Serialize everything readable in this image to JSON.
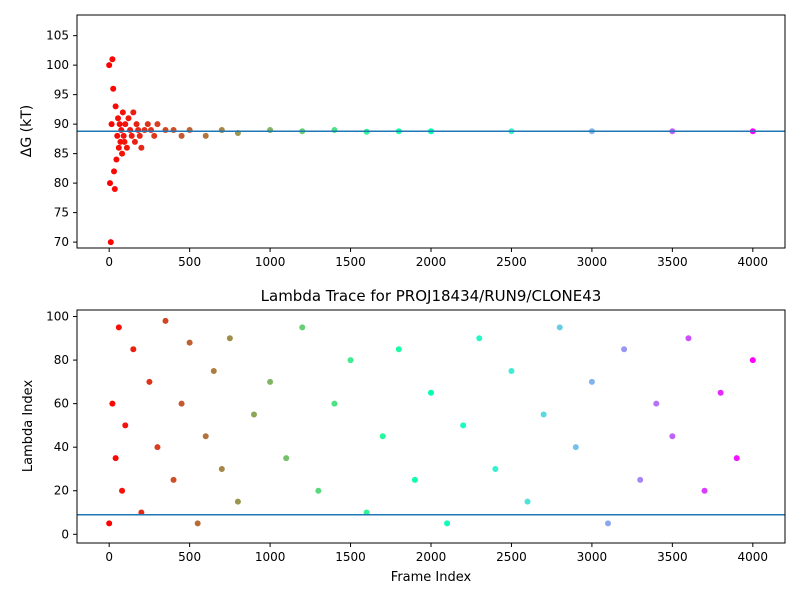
{
  "chart_data": [
    {
      "type": "scatter",
      "title": "",
      "xlabel": "",
      "ylabel": "ΔG (kT)",
      "xlim": [
        -200,
        4200
      ],
      "ylim": [
        69,
        108.5
      ],
      "xticks": [
        0,
        500,
        1000,
        1500,
        2000,
        2500,
        3000,
        3500,
        4000
      ],
      "yticks": [
        70,
        75,
        80,
        85,
        90,
        95,
        100,
        105
      ],
      "hline": 88.8,
      "hline_color": "#1f77b4",
      "colormap": "rainbow",
      "grid": false,
      "series": [
        {
          "x": [
            0,
            5,
            10,
            15,
            20,
            25,
            30,
            35,
            40,
            45,
            50,
            55,
            60,
            65,
            70,
            75,
            80,
            85,
            90,
            95,
            100,
            110,
            120,
            130,
            140,
            150,
            160,
            170,
            180,
            190,
            200,
            220,
            240,
            260,
            280,
            300,
            350,
            400,
            450,
            500,
            600,
            700,
            800,
            1000,
            1200,
            1400,
            1600,
            1800,
            2000,
            2500,
            3000,
            3500,
            4000
          ],
          "y": [
            100,
            80,
            70,
            90,
            101,
            96,
            82,
            79,
            93,
            84,
            88,
            91,
            86,
            90,
            87,
            89,
            85,
            92,
            88,
            87,
            90,
            86,
            91,
            89,
            88,
            92,
            87,
            90,
            89,
            88,
            86,
            89,
            90,
            89,
            88,
            90,
            89,
            89,
            88,
            89,
            88,
            89,
            88.5,
            89,
            88.8,
            89,
            88.7,
            88.8,
            88.8,
            88.8,
            88.8,
            88.8,
            88.8
          ]
        }
      ]
    },
    {
      "type": "scatter",
      "title": "Lambda Trace for PROJ18434/RUN9/CLONE43",
      "xlabel": "Frame Index",
      "ylabel": "Lambda Index",
      "xlim": [
        -200,
        4200
      ],
      "ylim": [
        -4,
        103
      ],
      "xticks": [
        0,
        500,
        1000,
        1500,
        2000,
        2500,
        3000,
        3500,
        4000
      ],
      "yticks": [
        0,
        20,
        40,
        60,
        80,
        100
      ],
      "hline": 9,
      "hline_color": "#1f77b4",
      "colormap": "rainbow",
      "grid": false,
      "series": [
        {
          "x": [
            0,
            20,
            40,
            60,
            80,
            100,
            150,
            200,
            250,
            300,
            350,
            400,
            450,
            500,
            550,
            600,
            650,
            700,
            750,
            800,
            900,
            1000,
            1100,
            1200,
            1300,
            1400,
            1500,
            1600,
            1700,
            1800,
            1900,
            2000,
            2100,
            2200,
            2300,
            2400,
            2500,
            2600,
            2700,
            2800,
            2900,
            3000,
            3100,
            3200,
            3300,
            3400,
            3500,
            3600,
            3700,
            3800,
            3900,
            4000
          ],
          "y": [
            5,
            60,
            35,
            95,
            20,
            50,
            85,
            10,
            70,
            40,
            98,
            25,
            60,
            88,
            5,
            45,
            75,
            30,
            90,
            15,
            55,
            70,
            35,
            95,
            20,
            60,
            80,
            10,
            45,
            85,
            25,
            65,
            5,
            50,
            90,
            30,
            75,
            15,
            55,
            95,
            40,
            70,
            5,
            85,
            25,
            60,
            45,
            90,
            20,
            65,
            35,
            80
          ]
        }
      ]
    }
  ]
}
